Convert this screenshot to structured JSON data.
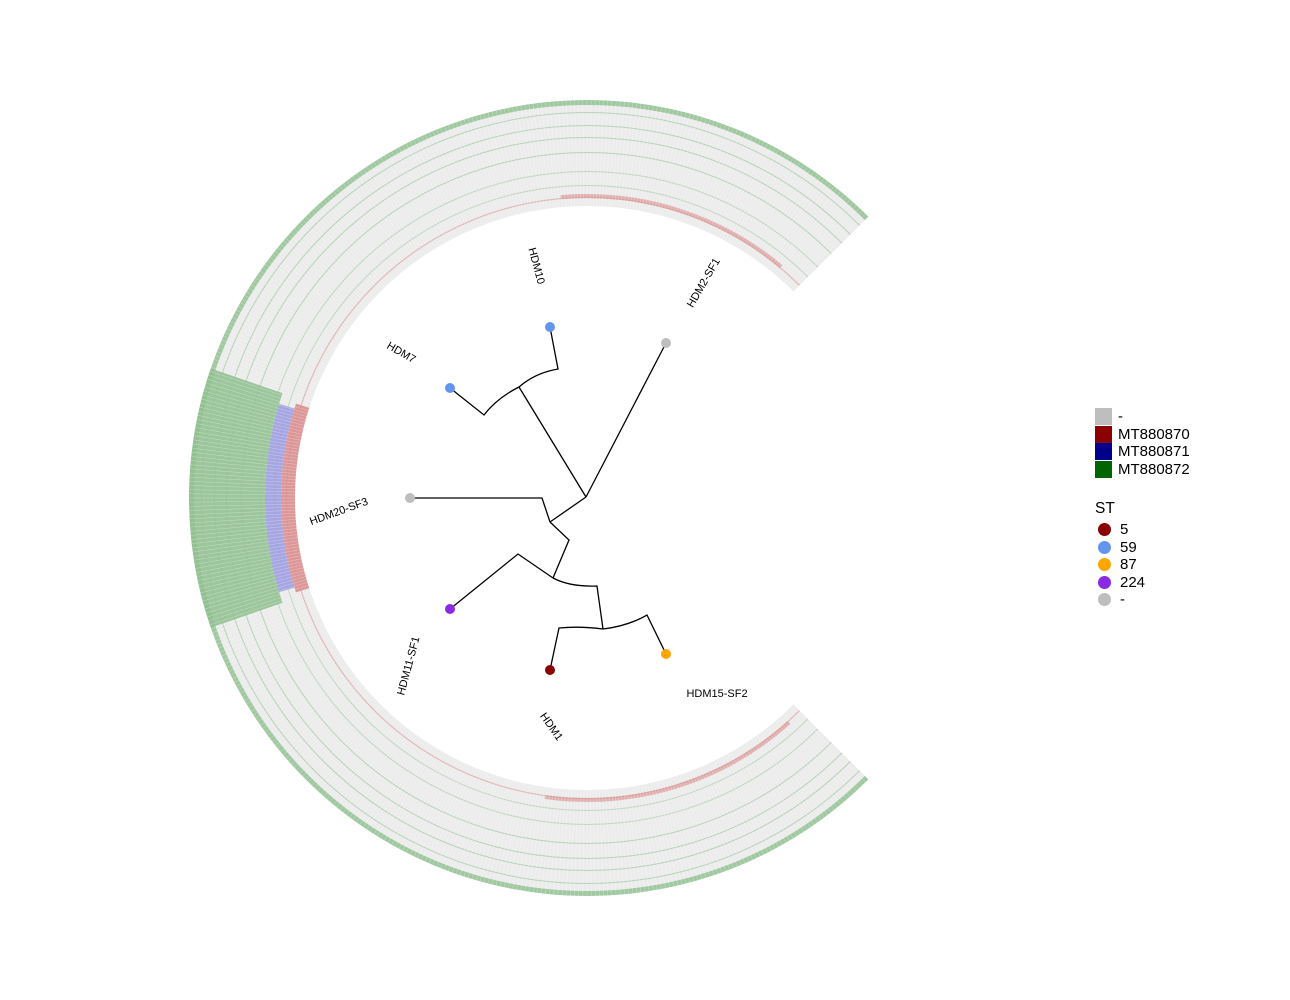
{
  "tree": {
    "tips": [
      {
        "label": "HDM10",
        "st": "59"
      },
      {
        "label": "HDM2-SF1",
        "st": "-"
      },
      {
        "label": "HDM7",
        "st": "59"
      },
      {
        "label": "HDM20-SF3",
        "st": "-"
      },
      {
        "label": "HDM11-SF1",
        "st": "224"
      },
      {
        "label": "HDM1",
        "st": "5"
      },
      {
        "label": "HDM15-SF2",
        "st": "87"
      }
    ]
  },
  "heatmap_legend": {
    "items": [
      {
        "label": "-",
        "color": "#bebebe"
      },
      {
        "label": "MT880870",
        "color": "#8b0000"
      },
      {
        "label": "MT880871",
        "color": "#00008b"
      },
      {
        "label": "MT880872",
        "color": "#006400"
      }
    ]
  },
  "st_legend": {
    "title": "ST",
    "items": [
      {
        "label": "5",
        "color": "#8b0000"
      },
      {
        "label": "59",
        "color": "#6495ed"
      },
      {
        "label": "87",
        "color": "#ffa500"
      },
      {
        "label": "224",
        "color": "#8a2be2"
      },
      {
        "label": "-",
        "color": "#bebebe"
      }
    ]
  },
  "colors": {
    "ring_background": "#ececec",
    "ring_green": "#8fc08f",
    "ring_red": "#d98a8a",
    "ring_blue": "#9a9ae0",
    "branch": "#000000"
  }
}
